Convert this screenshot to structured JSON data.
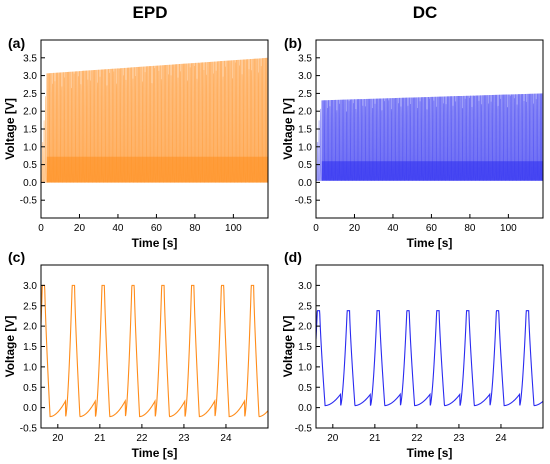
{
  "column_titles": [
    "EPD",
    "DC"
  ],
  "colors": {
    "epd": "#ff8c1a",
    "dc": "#2a2af0"
  },
  "chart_data": [
    {
      "id": "a",
      "panel_label": "(a)",
      "type": "line",
      "color": "#ff8c1a",
      "xlabel": "Time [s]",
      "ylabel": "Voltage [V]",
      "xlim": [
        0,
        118
      ],
      "ylim": [
        -1.0,
        4.0
      ],
      "xticks": [
        0,
        20,
        40,
        60,
        80,
        100
      ],
      "yticks": [
        -0.5,
        0.0,
        0.5,
        1.0,
        1.5,
        2.0,
        2.5,
        3.0,
        3.5
      ],
      "series": [
        {
          "x_start": 0,
          "x_end": 118,
          "period": 0.71,
          "minimum": 0.0,
          "peak_start": 3.05,
          "peak_end": 3.5
        }
      ]
    },
    {
      "id": "b",
      "panel_label": "(b)",
      "type": "line",
      "color": "#2a2af0",
      "xlabel": "Time [s]",
      "ylabel": "Voltage [V]",
      "xlim": [
        0,
        118
      ],
      "ylim": [
        -1.0,
        4.0
      ],
      "xticks": [
        0,
        20,
        40,
        60,
        80,
        100
      ],
      "yticks": [
        -0.5,
        0.0,
        0.5,
        1.0,
        1.5,
        2.0,
        2.5,
        3.0,
        3.5
      ],
      "series": [
        {
          "x_start": 0,
          "x_end": 118,
          "period": 0.71,
          "minimum": 0.05,
          "peak_start": 2.3,
          "peak_end": 2.5
        }
      ]
    },
    {
      "id": "c",
      "panel_label": "(c)",
      "type": "line",
      "color": "#ff8c1a",
      "xlabel": "Time [s]",
      "ylabel": "Voltage [V]",
      "xlim": [
        19.6,
        25.0
      ],
      "ylim": [
        -0.5,
        3.5
      ],
      "xticks": [
        20,
        21,
        22,
        23,
        24
      ],
      "yticks": [
        -0.5,
        0.0,
        0.5,
        1.0,
        1.5,
        2.0,
        2.5,
        3.0
      ],
      "series": [
        {
          "x_start": 19.6,
          "x_end": 25.0,
          "period": 0.71,
          "phase": 0.305,
          "minimum": -0.22,
          "peak": 3.0
        }
      ]
    },
    {
      "id": "d",
      "panel_label": "(d)",
      "type": "line",
      "color": "#2a2af0",
      "xlabel": "Time [s]",
      "ylabel": "Voltage [V]",
      "xlim": [
        19.6,
        25.0
      ],
      "ylim": [
        -0.5,
        3.5
      ],
      "xticks": [
        20,
        21,
        22,
        23,
        24
      ],
      "yticks": [
        -0.5,
        0.0,
        0.5,
        1.0,
        1.5,
        2.0,
        2.5,
        3.0
      ],
      "series": [
        {
          "x_start": 19.6,
          "x_end": 25.0,
          "period": 0.71,
          "phase": 0.305,
          "minimum": 0.05,
          "peak": 2.38
        }
      ]
    }
  ]
}
